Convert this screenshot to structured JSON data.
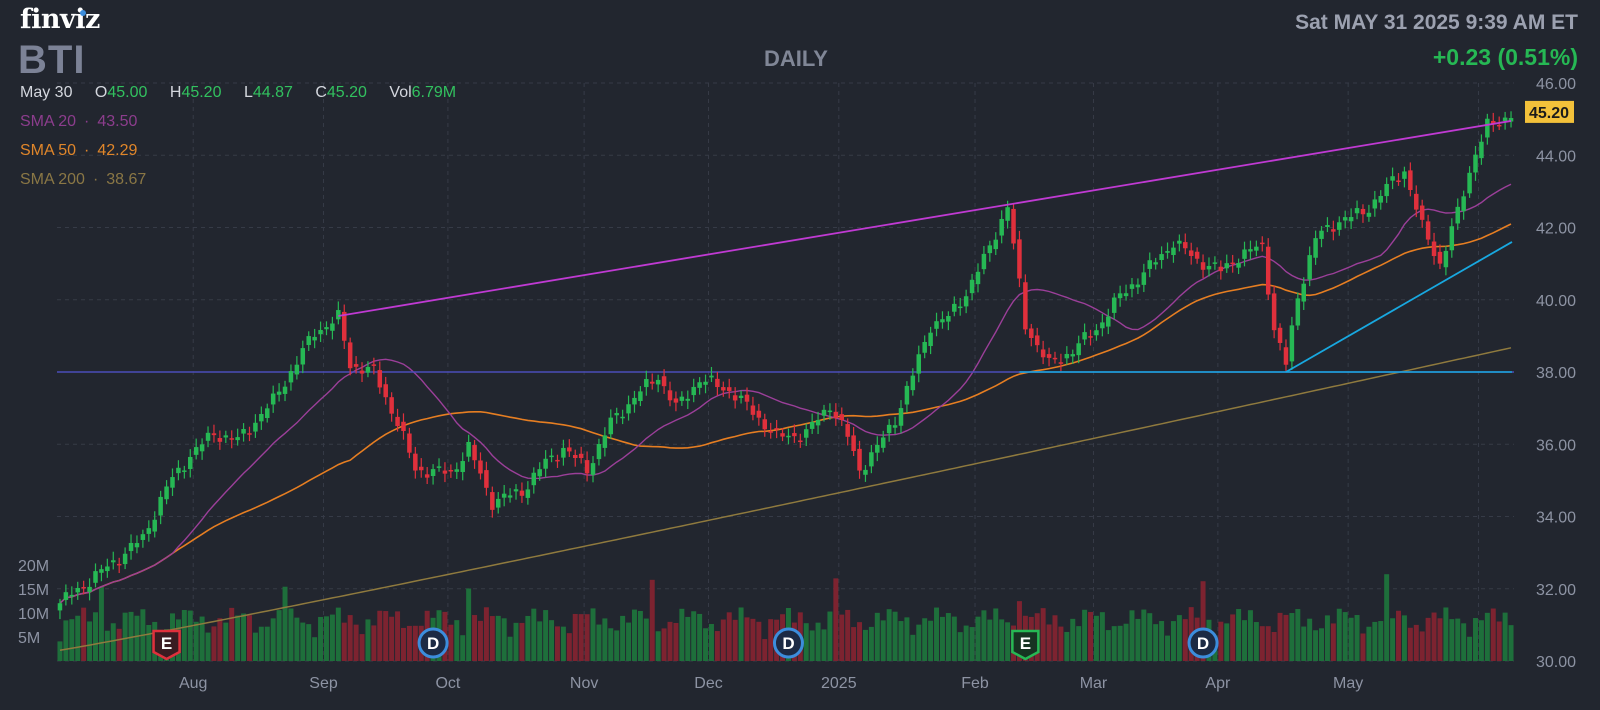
{
  "header": {
    "logo": "finviz",
    "ticker": "BTI",
    "period": "DAILY",
    "datetime": "Sat MAY 31 2025 9:39 AM ET",
    "change": "+0.23 (0.51%)"
  },
  "ohlc": {
    "date": "May 30",
    "open_label": "O",
    "open": "45.00",
    "high_label": "H",
    "high": "45.20",
    "low_label": "L",
    "low": "44.87",
    "close_label": "C",
    "close": "45.20",
    "vol_label": "Vol",
    "vol": "6.79M"
  },
  "indicators": [
    {
      "label": "SMA 20",
      "value": "43.50",
      "color": "#9b3f99"
    },
    {
      "label": "SMA 50",
      "value": "42.29",
      "color": "#e67e22"
    },
    {
      "label": "SMA 200",
      "value": "38.67",
      "color": "#8f7a3e"
    }
  ],
  "colors": {
    "background": "#22262f",
    "grid": "#363b47",
    "up": "#26b854",
    "down": "#e0303c",
    "volume_up": "#1e6f3b",
    "volume_down": "#7d2330",
    "resistance_line": "#c03ad3",
    "support_line": "#18a8e0",
    "level_line": "#4a4db8",
    "price_tag": "#f3c13a",
    "axis_text": "#8d93a3"
  },
  "chart_data": {
    "type": "candlestick",
    "price_axis": {
      "min": 30,
      "max": 46,
      "ticks": [
        46,
        44,
        42,
        40,
        38,
        36,
        34,
        32,
        30
      ]
    },
    "tick_labels": [
      "46.00",
      "44.00",
      "42.00",
      "40.00",
      "38.00",
      "36.00",
      "34.00",
      "32.00",
      "30.00"
    ],
    "volume_axis": {
      "ticks": [
        "20M",
        "15M",
        "10M",
        "5M"
      ]
    },
    "months": [
      "Aug",
      "Sep",
      "Oct",
      "Nov",
      "Dec",
      "2025",
      "Feb",
      "Mar",
      "Apr",
      "May"
    ],
    "last_price": "45.20",
    "events": [
      {
        "type": "E",
        "date": "2024-07-25",
        "kind": "earnings"
      },
      {
        "type": "D",
        "date": "2024-09-26",
        "kind": "dividend"
      },
      {
        "type": "D",
        "date": "2024-12-19",
        "kind": "dividend"
      },
      {
        "type": "E",
        "date": "2025-02-13",
        "kind": "earnings"
      },
      {
        "type": "D",
        "date": "2025-03-27",
        "kind": "dividend"
      }
    ],
    "anchors": [
      {
        "i": 0,
        "c": 31.6
      },
      {
        "i": 8,
        "c": 32.6
      },
      {
        "i": 14,
        "c": 33.4
      },
      {
        "i": 18,
        "c": 34.8
      },
      {
        "i": 22,
        "c": 35.7
      },
      {
        "i": 26,
        "c": 36.3
      },
      {
        "i": 30,
        "c": 36.1
      },
      {
        "i": 36,
        "c": 37.2
      },
      {
        "i": 43,
        "c": 39.1
      },
      {
        "i": 47,
        "c": 39.5
      },
      {
        "i": 49,
        "c": 38.2
      },
      {
        "i": 53,
        "c": 38.0
      },
      {
        "i": 57,
        "c": 36.6
      },
      {
        "i": 60,
        "c": 35.3
      },
      {
        "i": 66,
        "c": 35.2
      },
      {
        "i": 69,
        "c": 35.9
      },
      {
        "i": 73,
        "c": 34.4
      },
      {
        "i": 78,
        "c": 34.7
      },
      {
        "i": 82,
        "c": 35.5
      },
      {
        "i": 85,
        "c": 35.9
      },
      {
        "i": 89,
        "c": 35.3
      },
      {
        "i": 93,
        "c": 36.6
      },
      {
        "i": 97,
        "c": 37.3
      },
      {
        "i": 101,
        "c": 37.9
      },
      {
        "i": 104,
        "c": 37.0
      },
      {
        "i": 108,
        "c": 37.8
      },
      {
        "i": 113,
        "c": 37.5
      },
      {
        "i": 117,
        "c": 36.9
      },
      {
        "i": 121,
        "c": 36.2
      },
      {
        "i": 126,
        "c": 36.3
      },
      {
        "i": 130,
        "c": 37.1
      },
      {
        "i": 133,
        "c": 36.2
      },
      {
        "i": 135,
        "c": 35.3
      },
      {
        "i": 138,
        "c": 35.9
      },
      {
        "i": 141,
        "c": 36.7
      },
      {
        "i": 144,
        "c": 37.9
      },
      {
        "i": 147,
        "c": 39.3
      },
      {
        "i": 150,
        "c": 39.5
      },
      {
        "i": 153,
        "c": 40.2
      },
      {
        "i": 156,
        "c": 41.1
      },
      {
        "i": 160,
        "c": 42.6
      },
      {
        "i": 163,
        "c": 39.3
      },
      {
        "i": 167,
        "c": 38.2
      },
      {
        "i": 171,
        "c": 38.6
      },
      {
        "i": 175,
        "c": 39.2
      },
      {
        "i": 179,
        "c": 40.1
      },
      {
        "i": 184,
        "c": 40.9
      },
      {
        "i": 188,
        "c": 41.6
      },
      {
        "i": 192,
        "c": 41.1
      },
      {
        "i": 196,
        "c": 40.8
      },
      {
        "i": 199,
        "c": 41.2
      },
      {
        "i": 203,
        "c": 41.5
      },
      {
        "i": 205,
        "c": 39.2
      },
      {
        "i": 207,
        "c": 38.2
      },
      {
        "i": 209,
        "c": 40.1
      },
      {
        "i": 212,
        "c": 41.7
      },
      {
        "i": 216,
        "c": 42.2
      },
      {
        "i": 220,
        "c": 42.4
      },
      {
        "i": 224,
        "c": 43.1
      },
      {
        "i": 227,
        "c": 43.6
      },
      {
        "i": 230,
        "c": 42.0
      },
      {
        "i": 233,
        "c": 41.0
      },
      {
        "i": 236,
        "c": 42.4
      },
      {
        "i": 239,
        "c": 44.1
      },
      {
        "i": 241,
        "c": 44.8
      },
      {
        "i": 243,
        "c": 44.9
      },
      {
        "i": 245,
        "c": 45.2
      }
    ]
  }
}
